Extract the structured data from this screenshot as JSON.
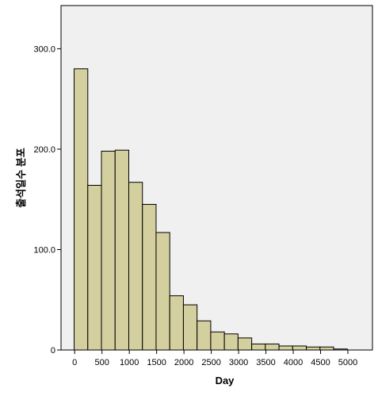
{
  "chart_data": {
    "type": "bar",
    "title": "",
    "xlabel": "Day",
    "ylabel": "출석일수 분포",
    "bin_edges": [
      -10,
      240,
      490,
      740,
      990,
      1240,
      1490,
      1740,
      1990,
      2240,
      2490,
      2740,
      2990,
      3240,
      3490,
      3740,
      3990,
      4240,
      4490,
      4740,
      4990
    ],
    "values": [
      280,
      164,
      198,
      199,
      167,
      145,
      117,
      54,
      45,
      29,
      18,
      16,
      12,
      6,
      6,
      4,
      4,
      3,
      3,
      1
    ],
    "xlim": [
      -250,
      5450
    ],
    "ylim": [
      0,
      343
    ],
    "xticks": [
      0,
      500,
      1000,
      1500,
      2000,
      2500,
      3000,
      3500,
      4000,
      4500,
      5000
    ],
    "xtick_labels": [
      "0",
      "500",
      "1000",
      "1500",
      "2000",
      "2500",
      "3000",
      "3500",
      "4000",
      "4500",
      "5000"
    ],
    "yticks": [
      0,
      100,
      200,
      300
    ],
    "ytick_labels": [
      "0",
      "100.0",
      "200.0",
      "300.0"
    ],
    "grid": false,
    "colors": {
      "bar_fill": "#D4CF9E",
      "bar_stroke": "#000000",
      "plot_background": "#F0F0F0",
      "axis": "#000000"
    }
  }
}
